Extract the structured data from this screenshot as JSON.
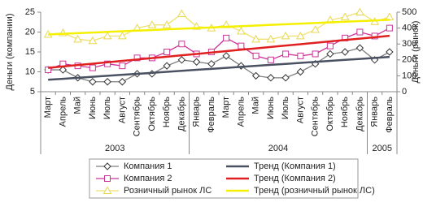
{
  "chart_data": {
    "type": "line",
    "y_label": "Деньги (компании)",
    "y2_label": "Деньги (рынок)",
    "categories": [
      "Март",
      "Апрель",
      "Май",
      "Июнь",
      "Июль",
      "Август",
      "Сентябрь",
      "Октябрь",
      "Ноябрь",
      "Декабрь",
      "Январь",
      "Февраль",
      "Март",
      "Апрель",
      "Май",
      "Июнь",
      "Июль",
      "Август",
      "Сентябрь",
      "Октябрь",
      "Ноябрь",
      "Декабрь",
      "Январь",
      "Февраль"
    ],
    "groups": [
      {
        "label": "2003",
        "count": 10
      },
      {
        "label": "2004",
        "count": 12
      },
      {
        "label": "2005",
        "count": 2
      }
    ],
    "ylim": [
      5,
      25
    ],
    "yticks": [
      5,
      10,
      15,
      20,
      25
    ],
    "y2lim": [
      0,
      500
    ],
    "y2ticks": [
      0,
      100,
      200,
      300,
      400,
      500
    ],
    "grid": false,
    "series": [
      {
        "name": "Компания 1",
        "color": "#7f7f7f",
        "marker": "diamond",
        "marker_color": "#333",
        "values": [
          10.5,
          10.5,
          8.5,
          7.5,
          7.5,
          7.5,
          9.5,
          9.5,
          11.5,
          13,
          12.5,
          12,
          14,
          11.5,
          9,
          8.5,
          8.5,
          10,
          12,
          14.5,
          15,
          16,
          13,
          15
        ]
      },
      {
        "name": "Тренд (Компания 1)",
        "color": "#4a5262",
        "width": 2.5,
        "values": [
          8,
          8.25,
          8.5,
          8.75,
          9,
          9.25,
          9.5,
          9.75,
          10,
          10.25,
          10.5,
          10.75,
          11,
          11.25,
          11.5,
          11.75,
          12,
          12.25,
          12.5,
          12.75,
          13,
          13.25,
          13.5,
          13.75
        ]
      },
      {
        "name": "Компания 2",
        "color": "#cc3399",
        "marker": "square",
        "marker_color": "#cc3399",
        "values": [
          10.5,
          12,
          11.5,
          11,
          12,
          11.5,
          13.5,
          13.5,
          15,
          17,
          14.5,
          15,
          18.5,
          16.5,
          14,
          13,
          14.5,
          14,
          14.5,
          16.5,
          18.5,
          20,
          19,
          21
        ]
      },
      {
        "name": "Тренд (Компания 2)",
        "color": "#e02020",
        "width": 2.5,
        "values": [
          11,
          11.35,
          11.7,
          12.05,
          12.4,
          12.75,
          13.1,
          13.45,
          13.8,
          14.15,
          14.5,
          14.85,
          15.2,
          15.55,
          15.9,
          16.25,
          16.6,
          16.95,
          17.3,
          17.65,
          18,
          18.35,
          18.7,
          19.05
        ]
      },
      {
        "name": "Розничный рынок ЛС",
        "color": "#f0e070",
        "marker": "triangle",
        "marker_color": "#e8d850",
        "axis": "y2",
        "values": [
          360,
          370,
          330,
          320,
          350,
          350,
          400,
          420,
          420,
          490,
          410,
          400,
          420,
          380,
          330,
          330,
          350,
          350,
          390,
          450,
          470,
          500,
          440,
          470
        ]
      },
      {
        "name": "Тренд (розничный рынок ЛС)",
        "color": "#f5f000",
        "width": 2.5,
        "axis": "y2",
        "values": [
          360,
          364,
          368,
          372,
          376,
          380,
          384,
          388,
          392,
          396,
          400,
          404,
          408,
          412,
          416,
          420,
          424,
          428,
          432,
          436,
          440,
          444,
          448,
          452
        ]
      }
    ]
  }
}
